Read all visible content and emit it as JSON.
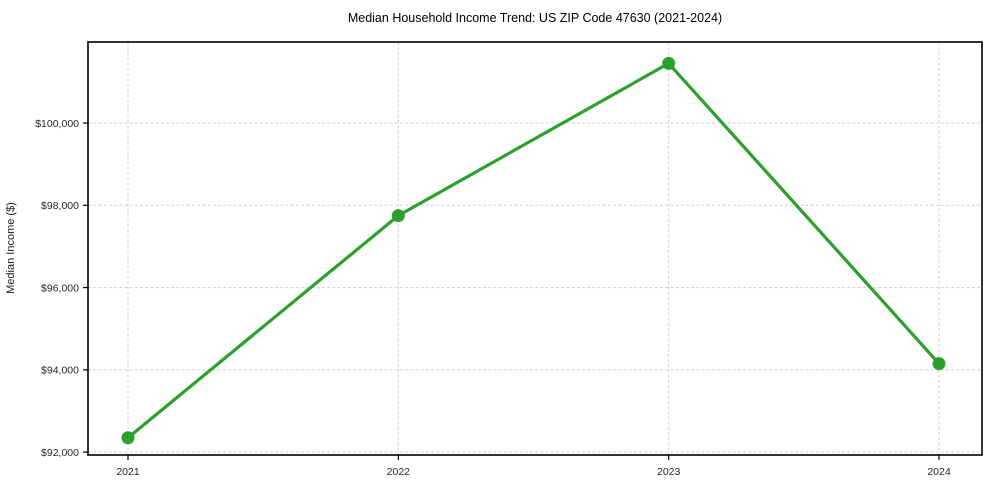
{
  "chart_data": {
    "type": "line",
    "title": "Median Household Income Trend: US ZIP Code 47630 (2021-2024)",
    "xlabel": "",
    "ylabel": "Median Income ($)",
    "categories": [
      "2021",
      "2022",
      "2023",
      "2024"
    ],
    "series": [
      {
        "name": "Median Household Income",
        "values": [
          92350,
          97750,
          101450,
          94150
        ]
      }
    ],
    "ylim": [
      91930,
      101970
    ],
    "yticks": [
      92000,
      94000,
      96000,
      98000,
      100000
    ],
    "ytick_prefix": "$",
    "grid": "on",
    "grid_style": "dashed",
    "legend": "none",
    "colors": {
      "line": "#2ca02c",
      "marker": "#2ca02c",
      "grid": "#d0d0d0",
      "spine": "#000000",
      "background": "#ffffff"
    }
  }
}
